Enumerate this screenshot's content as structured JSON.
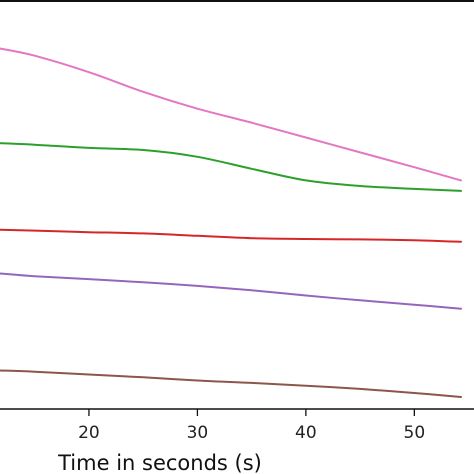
{
  "chart_data": {
    "type": "line",
    "title": "",
    "xlabel": "Time in seconds (s)",
    "ylabel": "",
    "xlim": [
      11.8,
      55.5
    ],
    "ylim": [
      0,
      100
    ],
    "x_ticks": [
      20,
      30,
      40,
      50
    ],
    "x_tick_labels": [
      "20",
      "30",
      "40",
      "50"
    ],
    "grid": false,
    "legend": "none",
    "series": [
      {
        "color": "#e377c2",
        "x": [
          11.8,
          15,
          20,
          25,
          30,
          35,
          40,
          45,
          50,
          54.3
        ],
        "y": [
          89.9,
          88.1,
          84.0,
          79.1,
          74.9,
          71.4,
          67.7,
          64.0,
          60.3,
          57.0
        ]
      },
      {
        "color": "#2ca02c",
        "x": [
          11.8,
          15,
          20,
          25,
          30,
          35,
          40,
          45,
          50,
          54.3
        ],
        "y": [
          66.3,
          65.9,
          65.1,
          64.6,
          62.9,
          59.9,
          57.0,
          55.6,
          54.9,
          54.4
        ]
      },
      {
        "color": "#d62728",
        "x": [
          11.8,
          15,
          20,
          25,
          30,
          35,
          40,
          45,
          50,
          54.3
        ],
        "y": [
          44.7,
          44.5,
          44.1,
          43.8,
          43.2,
          42.6,
          42.4,
          42.3,
          42.1,
          41.7
        ]
      },
      {
        "color": "#9467bd",
        "x": [
          11.8,
          15,
          20,
          25,
          30,
          35,
          40,
          45,
          50,
          54.3
        ],
        "y": [
          33.8,
          33.1,
          32.4,
          31.6,
          30.7,
          29.6,
          28.3,
          27.1,
          26.0,
          25.0
        ]
      },
      {
        "color": "#8c564b",
        "x": [
          11.8,
          15,
          20,
          25,
          30,
          35,
          40,
          45,
          50,
          54.3
        ],
        "y": [
          9.6,
          9.3,
          8.6,
          7.9,
          7.1,
          6.5,
          5.8,
          5.0,
          4.0,
          3.0
        ]
      }
    ]
  }
}
